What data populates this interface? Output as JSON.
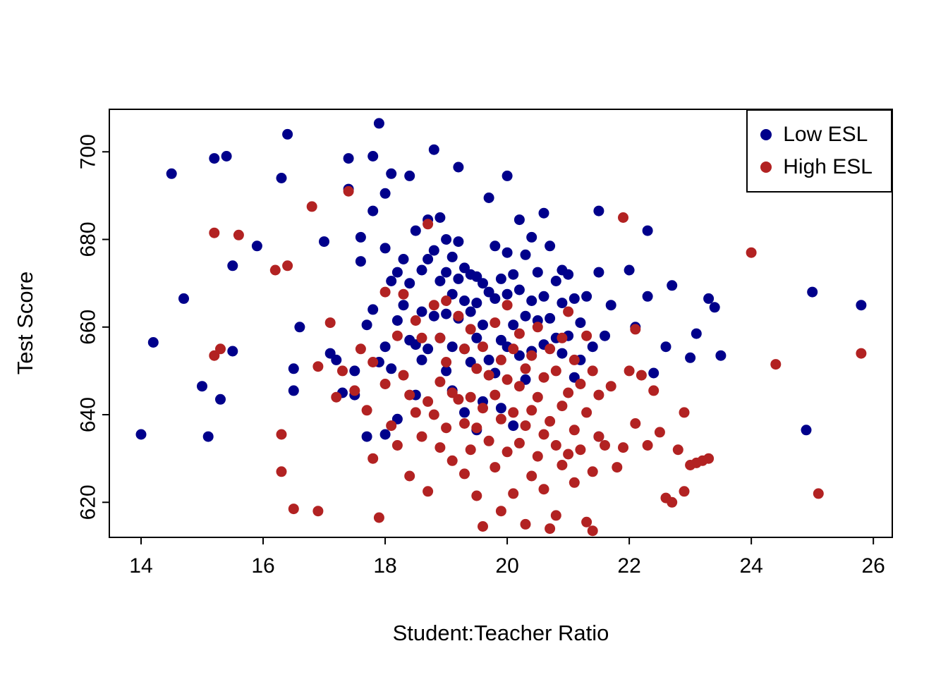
{
  "chart_data": {
    "type": "scatter",
    "title": "",
    "xlabel": "Student:Teacher Ratio",
    "ylabel": "Test Score",
    "xlim": [
      13.48,
      26.31
    ],
    "ylim": [
      612,
      709.7
    ],
    "xticks": [
      14,
      16,
      18,
      20,
      22,
      24,
      26
    ],
    "yticks": [
      620,
      640,
      660,
      680,
      700
    ],
    "grid": false,
    "marker": "filled-circle",
    "legend_position": "top-right",
    "series": [
      {
        "name": "Low ESL",
        "color": "#00008B",
        "points": [
          [
            14.0,
            635.5
          ],
          [
            14.2,
            656.5
          ],
          [
            14.5,
            695
          ],
          [
            14.7,
            666.5
          ],
          [
            15.0,
            646.5
          ],
          [
            15.1,
            635
          ],
          [
            15.2,
            698.5
          ],
          [
            15.3,
            643.5
          ],
          [
            15.4,
            699
          ],
          [
            15.5,
            654.5
          ],
          [
            15.5,
            674
          ],
          [
            15.9,
            678.5
          ],
          [
            16.3,
            694
          ],
          [
            16.4,
            704
          ],
          [
            16.5,
            650.5
          ],
          [
            16.5,
            645.5
          ],
          [
            16.6,
            660
          ],
          [
            17.0,
            679.5
          ],
          [
            17.1,
            654
          ],
          [
            17.2,
            652.5
          ],
          [
            17.3,
            645
          ],
          [
            17.4,
            698.5
          ],
          [
            17.4,
            691.5
          ],
          [
            17.5,
            650
          ],
          [
            17.5,
            644.5
          ],
          [
            17.6,
            680.5
          ],
          [
            17.6,
            675
          ],
          [
            17.7,
            635
          ],
          [
            17.7,
            660.5
          ],
          [
            17.8,
            699
          ],
          [
            17.8,
            686.5
          ],
          [
            17.8,
            664
          ],
          [
            17.9,
            706.5
          ],
          [
            17.9,
            652
          ],
          [
            18.0,
            690.5
          ],
          [
            18.0,
            678
          ],
          [
            18.0,
            655.5
          ],
          [
            18.0,
            635.5
          ],
          [
            18.1,
            695
          ],
          [
            18.1,
            670.5
          ],
          [
            18.1,
            650.5
          ],
          [
            18.2,
            672.5
          ],
          [
            18.2,
            661.5
          ],
          [
            18.2,
            639
          ],
          [
            18.3,
            675.5
          ],
          [
            18.3,
            665
          ],
          [
            18.4,
            694.5
          ],
          [
            18.4,
            670
          ],
          [
            18.4,
            657
          ],
          [
            18.5,
            682
          ],
          [
            18.5,
            656
          ],
          [
            18.5,
            644.5
          ],
          [
            18.6,
            673
          ],
          [
            18.6,
            663.5
          ],
          [
            18.6,
            652.5
          ],
          [
            18.7,
            684.5
          ],
          [
            18.7,
            675.5
          ],
          [
            18.7,
            655
          ],
          [
            18.8,
            700.5
          ],
          [
            18.8,
            677.5
          ],
          [
            18.8,
            662.5
          ],
          [
            18.9,
            685
          ],
          [
            18.9,
            670.5
          ],
          [
            18.9,
            657.5
          ],
          [
            19.0,
            680
          ],
          [
            19.0,
            672.5
          ],
          [
            19.0,
            663
          ],
          [
            19.0,
            650
          ],
          [
            19.1,
            676
          ],
          [
            19.1,
            667.5
          ],
          [
            19.1,
            655.5
          ],
          [
            19.1,
            645.5
          ],
          [
            19.2,
            696.5
          ],
          [
            19.2,
            679.5
          ],
          [
            19.2,
            671
          ],
          [
            19.2,
            662
          ],
          [
            19.3,
            673.5
          ],
          [
            19.3,
            666
          ],
          [
            19.3,
            655
          ],
          [
            19.3,
            640.5
          ],
          [
            19.4,
            672
          ],
          [
            19.4,
            663.5
          ],
          [
            19.4,
            652
          ],
          [
            19.5,
            671.5
          ],
          [
            19.5,
            665.5
          ],
          [
            19.5,
            657.5
          ],
          [
            19.5,
            636.5
          ],
          [
            19.6,
            670
          ],
          [
            19.6,
            660.5
          ],
          [
            19.6,
            643
          ],
          [
            19.7,
            689.5
          ],
          [
            19.7,
            668
          ],
          [
            19.7,
            652.5
          ],
          [
            19.8,
            678.5
          ],
          [
            19.8,
            666.5
          ],
          [
            19.8,
            649.5
          ],
          [
            19.9,
            671
          ],
          [
            19.9,
            657
          ],
          [
            19.9,
            641.5
          ],
          [
            20.0,
            694.5
          ],
          [
            20.0,
            677
          ],
          [
            20.0,
            667.5
          ],
          [
            20.0,
            655.5
          ],
          [
            20.1,
            672
          ],
          [
            20.1,
            660.5
          ],
          [
            20.1,
            637.5
          ],
          [
            20.2,
            684.5
          ],
          [
            20.2,
            668.5
          ],
          [
            20.2,
            653.5
          ],
          [
            20.3,
            676.5
          ],
          [
            20.3,
            662.5
          ],
          [
            20.3,
            648
          ],
          [
            20.4,
            680.5
          ],
          [
            20.4,
            666
          ],
          [
            20.4,
            654.5
          ],
          [
            20.5,
            672.5
          ],
          [
            20.5,
            661.5
          ],
          [
            20.6,
            686
          ],
          [
            20.6,
            667
          ],
          [
            20.6,
            656
          ],
          [
            20.7,
            678.5
          ],
          [
            20.7,
            662
          ],
          [
            20.8,
            670.5
          ],
          [
            20.8,
            657.5
          ],
          [
            20.9,
            673
          ],
          [
            20.9,
            665.5
          ],
          [
            20.9,
            654
          ],
          [
            21.0,
            672
          ],
          [
            21.0,
            658
          ],
          [
            21.1,
            666.5
          ],
          [
            21.1,
            648.5
          ],
          [
            21.2,
            661
          ],
          [
            21.2,
            652.5
          ],
          [
            21.3,
            667
          ],
          [
            21.4,
            655.5
          ],
          [
            21.5,
            686.5
          ],
          [
            21.5,
            672.5
          ],
          [
            21.5,
            635
          ],
          [
            21.6,
            658
          ],
          [
            21.7,
            665
          ],
          [
            22.0,
            673
          ],
          [
            22.1,
            660
          ],
          [
            22.3,
            682
          ],
          [
            22.3,
            667
          ],
          [
            22.4,
            649.5
          ],
          [
            22.6,
            655.5
          ],
          [
            22.7,
            669.5
          ],
          [
            23.0,
            653
          ],
          [
            23.1,
            658.5
          ],
          [
            23.3,
            666.5
          ],
          [
            23.4,
            664.5
          ],
          [
            23.5,
            653.5
          ],
          [
            24.9,
            636.5
          ],
          [
            25.0,
            668
          ],
          [
            25.8,
            665
          ]
        ]
      },
      {
        "name": "High ESL",
        "color": "#B22222",
        "points": [
          [
            15.2,
            681.5
          ],
          [
            15.2,
            653.5
          ],
          [
            15.3,
            655
          ],
          [
            15.6,
            681
          ],
          [
            16.2,
            673
          ],
          [
            16.3,
            627
          ],
          [
            16.3,
            635.5
          ],
          [
            16.4,
            674
          ],
          [
            16.5,
            618.5
          ],
          [
            16.8,
            687.5
          ],
          [
            16.9,
            618
          ],
          [
            16.9,
            651
          ],
          [
            17.1,
            661
          ],
          [
            17.2,
            644
          ],
          [
            17.3,
            650
          ],
          [
            17.4,
            691
          ],
          [
            17.5,
            645.5
          ],
          [
            17.6,
            655
          ],
          [
            17.7,
            641
          ],
          [
            17.8,
            652
          ],
          [
            17.8,
            630
          ],
          [
            17.9,
            616.5
          ],
          [
            18.0,
            668
          ],
          [
            18.0,
            647
          ],
          [
            18.1,
            637.5
          ],
          [
            18.2,
            658
          ],
          [
            18.2,
            633
          ],
          [
            18.3,
            667.5
          ],
          [
            18.3,
            649
          ],
          [
            18.4,
            644.5
          ],
          [
            18.4,
            626
          ],
          [
            18.5,
            661.5
          ],
          [
            18.5,
            640.5
          ],
          [
            18.6,
            657.5
          ],
          [
            18.6,
            635
          ],
          [
            18.7,
            683.5
          ],
          [
            18.7,
            643
          ],
          [
            18.7,
            622.5
          ],
          [
            18.8,
            665
          ],
          [
            18.8,
            640
          ],
          [
            18.9,
            657.5
          ],
          [
            18.9,
            647.5
          ],
          [
            18.9,
            632.5
          ],
          [
            19.0,
            666
          ],
          [
            19.0,
            652
          ],
          [
            19.0,
            637
          ],
          [
            19.1,
            645
          ],
          [
            19.1,
            629.5
          ],
          [
            19.2,
            662.5
          ],
          [
            19.2,
            643.5
          ],
          [
            19.3,
            655
          ],
          [
            19.3,
            638
          ],
          [
            19.3,
            626.5
          ],
          [
            19.4,
            659.5
          ],
          [
            19.4,
            644
          ],
          [
            19.4,
            632
          ],
          [
            19.5,
            650.5
          ],
          [
            19.5,
            637
          ],
          [
            19.5,
            621.5
          ],
          [
            19.6,
            655.5
          ],
          [
            19.6,
            641.5
          ],
          [
            19.6,
            614.5
          ],
          [
            19.7,
            649
          ],
          [
            19.7,
            634
          ],
          [
            19.8,
            661
          ],
          [
            19.8,
            644.5
          ],
          [
            19.8,
            628
          ],
          [
            19.9,
            652.5
          ],
          [
            19.9,
            639
          ],
          [
            19.9,
            618
          ],
          [
            20.0,
            665
          ],
          [
            20.0,
            648
          ],
          [
            20.0,
            631.5
          ],
          [
            20.1,
            655
          ],
          [
            20.1,
            640.5
          ],
          [
            20.1,
            622
          ],
          [
            20.2,
            658.5
          ],
          [
            20.2,
            646.5
          ],
          [
            20.2,
            633.5
          ],
          [
            20.3,
            650.5
          ],
          [
            20.3,
            637.5
          ],
          [
            20.3,
            615
          ],
          [
            20.4,
            653.5
          ],
          [
            20.4,
            641
          ],
          [
            20.4,
            626
          ],
          [
            20.5,
            660
          ],
          [
            20.5,
            644
          ],
          [
            20.5,
            630.5
          ],
          [
            20.6,
            648.5
          ],
          [
            20.6,
            635.5
          ],
          [
            20.6,
            623
          ],
          [
            20.7,
            655
          ],
          [
            20.7,
            638.5
          ],
          [
            20.7,
            614
          ],
          [
            20.8,
            650
          ],
          [
            20.8,
            633
          ],
          [
            20.8,
            617
          ],
          [
            20.9,
            657.5
          ],
          [
            20.9,
            642
          ],
          [
            20.9,
            628.5
          ],
          [
            21.0,
            663.5
          ],
          [
            21.0,
            645
          ],
          [
            21.0,
            631
          ],
          [
            21.1,
            652.5
          ],
          [
            21.1,
            636.5
          ],
          [
            21.1,
            624.5
          ],
          [
            21.2,
            647
          ],
          [
            21.2,
            632
          ],
          [
            21.3,
            658
          ],
          [
            21.3,
            640.5
          ],
          [
            21.3,
            615.5
          ],
          [
            21.4,
            650
          ],
          [
            21.4,
            627
          ],
          [
            21.4,
            613.5
          ],
          [
            21.5,
            644.5
          ],
          [
            21.5,
            635
          ],
          [
            21.6,
            633
          ],
          [
            21.7,
            646.5
          ],
          [
            21.8,
            628
          ],
          [
            21.9,
            685
          ],
          [
            21.9,
            632.5
          ],
          [
            22.0,
            650
          ],
          [
            22.1,
            659.5
          ],
          [
            22.1,
            638
          ],
          [
            22.2,
            649
          ],
          [
            22.3,
            633
          ],
          [
            22.4,
            645.5
          ],
          [
            22.5,
            636
          ],
          [
            22.6,
            621
          ],
          [
            22.7,
            620
          ],
          [
            22.8,
            632
          ],
          [
            22.9,
            640.5
          ],
          [
            22.9,
            622.5
          ],
          [
            23.0,
            628.5
          ],
          [
            23.1,
            629
          ],
          [
            23.2,
            629.5
          ],
          [
            23.3,
            630
          ],
          [
            24.0,
            677
          ],
          [
            24.4,
            651.5
          ],
          [
            25.1,
            622
          ],
          [
            25.8,
            654
          ]
        ]
      }
    ]
  }
}
